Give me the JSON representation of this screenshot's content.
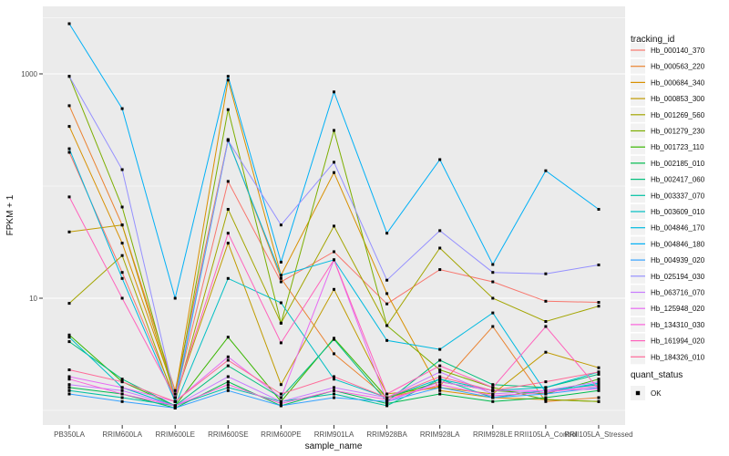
{
  "chart_data": {
    "type": "line",
    "title": "",
    "xlabel": "sample_name",
    "ylabel": "FPKM + 1",
    "legend_title": "tracking_id",
    "y_scale": "log10",
    "y_tick_labels": [
      "10",
      "1000"
    ],
    "y_ticks": [
      10,
      1000
    ],
    "y_minor_gridlines": [
      1,
      100,
      3162
    ],
    "ylim": [
      0.74,
      4000
    ],
    "grid": "on",
    "legend_position": "right",
    "marker": "black-square",
    "categories": [
      "PB350LA",
      "RRIM600LA",
      "RRIM600LE",
      "RRIM600SE",
      "RRIM600PE",
      "RRIM901LA",
      "RRIM928BA",
      "RRIM928LA",
      "RRIM928LE",
      "RRII105LA_Control",
      "RRII105LA_Stressed"
    ],
    "series": [
      {
        "name": "Hb_000140_370",
        "color": "#F8766D",
        "values": [
          200,
          17,
          1.3,
          110,
          14,
          26,
          8.9,
          18,
          14,
          9.4,
          9.2
        ]
      },
      {
        "name": "Hb_000563_220",
        "color": "#EA8331",
        "values": [
          520,
          45,
          1.5,
          260,
          15,
          3.2,
          1.3,
          1.65,
          5.6,
          1.2,
          1.3
        ]
      },
      {
        "name": "Hb_000684_340",
        "color": "#D89000",
        "values": [
          340,
          31,
          1.4,
          880,
          16,
          132,
          11,
          1.5,
          1.3,
          1.25,
          1.2
        ]
      },
      {
        "name": "Hb_000853_300",
        "color": "#C09B00",
        "values": [
          39,
          45,
          1.3,
          31,
          1.7,
          12,
          1.4,
          1.6,
          1.4,
          3.3,
          2.4
        ]
      },
      {
        "name": "Hb_001269_560",
        "color": "#A3A500",
        "values": [
          9,
          24,
          1.2,
          62,
          6.0,
          44,
          5.7,
          28,
          10,
          6.2,
          8.5
        ]
      },
      {
        "name": "Hb_001279_230",
        "color": "#7CAE00",
        "values": [
          950,
          65,
          1.3,
          480,
          6.0,
          313,
          5.7,
          2.3,
          1.6,
          1.25,
          1.2
        ]
      },
      {
        "name": "Hb_001723_110",
        "color": "#39B600",
        "values": [
          4.7,
          1.8,
          1.1,
          4.5,
          1.2,
          4.4,
          1.3,
          1.8,
          1.5,
          1.4,
          1.9
        ]
      },
      {
        "name": "Hb_002185_010",
        "color": "#00BB4E",
        "values": [
          1.6,
          1.4,
          1.05,
          1.8,
          1.1,
          1.5,
          1.15,
          1.4,
          1.2,
          1.3,
          1.5
        ]
      },
      {
        "name": "Hb_002417_060",
        "color": "#00BF7D",
        "values": [
          4.1,
          1.9,
          1.1,
          2.5,
          1.3,
          4.3,
          1.2,
          2.8,
          1.7,
          1.6,
          2.1
        ]
      },
      {
        "name": "Hb_003337_070",
        "color": "#00C1A3",
        "values": [
          1.5,
          1.3,
          1.1,
          1.6,
          1.2,
          1.4,
          1.1,
          1.9,
          1.3,
          1.5,
          1.7
        ]
      },
      {
        "name": "Hb_003609_010",
        "color": "#00BFC4",
        "values": [
          4.5,
          1.6,
          1.1,
          15,
          9.1,
          1.9,
          1.3,
          1.9,
          1.5,
          1.6,
          2.2
        ]
      },
      {
        "name": "Hb_004846_170",
        "color": "#00BAE0",
        "values": [
          215,
          15,
          1.2,
          255,
          16,
          22,
          4.2,
          3.5,
          7.4,
          1.45,
          1.75
        ]
      },
      {
        "name": "Hb_004846_180",
        "color": "#00B0F6",
        "values": [
          2800,
          490,
          10,
          950,
          21,
          690,
          38,
          172,
          20,
          137,
          62
        ]
      },
      {
        "name": "Hb_004939_020",
        "color": "#35A2FF",
        "values": [
          1.4,
          1.2,
          1.05,
          1.5,
          1.1,
          1.3,
          1.2,
          1.6,
          1.3,
          1.4,
          1.6
        ]
      },
      {
        "name": "Hb_025194_030",
        "color": "#9590FF",
        "values": [
          950,
          140,
          1.3,
          255,
          45,
          163,
          14.5,
          40,
          17,
          16.5,
          19.8
        ]
      },
      {
        "name": "Hb_063716_070",
        "color": "#C77CFF",
        "values": [
          1.7,
          1.5,
          1.1,
          2.0,
          1.2,
          1.6,
          1.3,
          2.2,
          1.4,
          1.5,
          1.8
        ]
      },
      {
        "name": "Hb_125948_020",
        "color": "#E76BF3",
        "values": [
          2.0,
          1.6,
          1.2,
          3.0,
          1.3,
          22,
          1.2,
          1.8,
          1.5,
          1.5,
          1.55
        ]
      },
      {
        "name": "Hb_134310_030",
        "color": "#FA62DB",
        "values": [
          1.9,
          1.4,
          1.1,
          1.7,
          1.15,
          1.5,
          1.25,
          1.7,
          1.35,
          1.45,
          1.65
        ]
      },
      {
        "name": "Hb_161994_020",
        "color": "#FF62BC",
        "values": [
          80,
          10,
          1.3,
          38,
          4.0,
          22,
          1.4,
          2.5,
          1.6,
          5.6,
          1.55
        ]
      },
      {
        "name": "Hb_184326_010",
        "color": "#FF6A98",
        "values": [
          2.3,
          1.8,
          1.2,
          2.8,
          1.4,
          2.0,
          1.3,
          2.0,
          1.5,
          1.8,
          2.2
        ]
      }
    ],
    "quant_legend": {
      "title": "quant_status",
      "items": [
        {
          "label": "OK",
          "marker": "black-square"
        }
      ]
    },
    "style_colors": {
      "panel_bg": "#EBEBEB",
      "gridline": "#FFFFFF",
      "tick_text": "#4D4D4D",
      "axis_text": "#111111",
      "legend_key_bg": "#F2F2F2",
      "marker": "#000000"
    }
  }
}
